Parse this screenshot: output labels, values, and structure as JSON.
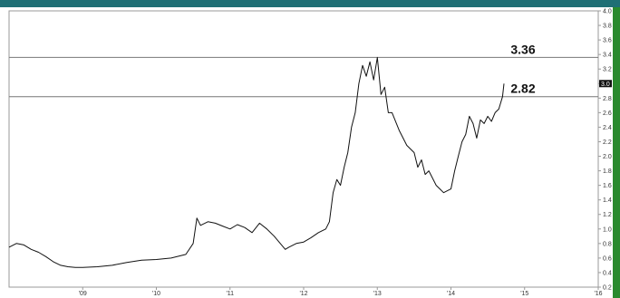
{
  "colors": {
    "accent_bar": "#1f6f75",
    "side_strip": "#2a8a2e",
    "series_line": "#111111",
    "reference_line": "#777777",
    "current_marker": "#111111",
    "frame": "#999999"
  },
  "chart_data": {
    "type": "line",
    "title": "",
    "xlabel": "",
    "ylabel": "",
    "xlim": [
      2008.0,
      2016.0
    ],
    "ylim": [
      0.2,
      4.0
    ],
    "y_axis_side": "right",
    "grid": false,
    "x_ticks": [
      {
        "value": 2009,
        "label": "'09"
      },
      {
        "value": 2010,
        "label": "'10"
      },
      {
        "value": 2011,
        "label": "'11"
      },
      {
        "value": 2012,
        "label": "'12"
      },
      {
        "value": 2013,
        "label": "'13"
      },
      {
        "value": 2014,
        "label": "'14"
      },
      {
        "value": 2015,
        "label": "'15"
      },
      {
        "value": 2016,
        "label": "'16"
      }
    ],
    "y_ticks": [
      "4.0",
      "3.8",
      "3.6",
      "3.4",
      "3.2",
      "3.0",
      "2.8",
      "2.6",
      "2.4",
      "2.2",
      "2.0",
      "1.8",
      "1.6",
      "1.4",
      "1.2",
      "1.0",
      "0.8",
      "0.6",
      "0.4",
      "0.2"
    ],
    "reference_lines": [
      {
        "value": 3.36,
        "label": "3.36"
      },
      {
        "value": 2.82,
        "label": "2.82"
      }
    ],
    "last_value_marker": {
      "value": 3.0,
      "label": "3.0"
    },
    "series": [
      {
        "x": [
          2008.0,
          2008.1,
          2008.2,
          2008.3,
          2008.4,
          2008.5,
          2008.6,
          2008.7,
          2008.8,
          2008.9,
          2009.0,
          2009.2,
          2009.4,
          2009.6,
          2009.8,
          2010.0,
          2010.2,
          2010.4,
          2010.5,
          2010.55,
          2010.6,
          2010.7,
          2010.8,
          2010.9,
          2011.0,
          2011.1,
          2011.2,
          2011.3,
          2011.4,
          2011.5,
          2011.6,
          2011.7,
          2011.75,
          2011.8,
          2011.9,
          2012.0,
          2012.1,
          2012.2,
          2012.3,
          2012.35,
          2012.4,
          2012.45,
          2012.5,
          2012.55,
          2012.6,
          2012.65,
          2012.7,
          2012.75,
          2012.8,
          2012.85,
          2012.9,
          2012.95,
          2013.0,
          2013.05,
          2013.1,
          2013.15,
          2013.2,
          2013.3,
          2013.4,
          2013.5,
          2013.55,
          2013.6,
          2013.65,
          2013.7,
          2013.8,
          2013.85,
          2013.9,
          2014.0,
          2014.05,
          2014.1,
          2014.15,
          2014.2,
          2014.25,
          2014.3,
          2014.35,
          2014.4,
          2014.45,
          2014.5,
          2014.55,
          2014.6,
          2014.65,
          2014.7,
          2014.72
        ],
        "values": [
          0.75,
          0.8,
          0.78,
          0.72,
          0.68,
          0.62,
          0.55,
          0.5,
          0.48,
          0.47,
          0.47,
          0.48,
          0.5,
          0.54,
          0.57,
          0.58,
          0.6,
          0.65,
          0.8,
          1.15,
          1.05,
          1.1,
          1.08,
          1.04,
          1.0,
          1.06,
          1.02,
          0.95,
          1.08,
          1.0,
          0.9,
          0.78,
          0.72,
          0.75,
          0.8,
          0.82,
          0.88,
          0.95,
          1.0,
          1.1,
          1.5,
          1.68,
          1.6,
          1.85,
          2.05,
          2.4,
          2.6,
          3.0,
          3.25,
          3.1,
          3.3,
          3.05,
          3.36,
          2.85,
          2.95,
          2.6,
          2.6,
          2.35,
          2.15,
          2.05,
          1.85,
          1.95,
          1.75,
          1.8,
          1.6,
          1.55,
          1.5,
          1.55,
          1.8,
          2.0,
          2.2,
          2.3,
          2.55,
          2.45,
          2.25,
          2.5,
          2.45,
          2.55,
          2.48,
          2.6,
          2.65,
          2.82,
          3.0
        ]
      }
    ]
  }
}
